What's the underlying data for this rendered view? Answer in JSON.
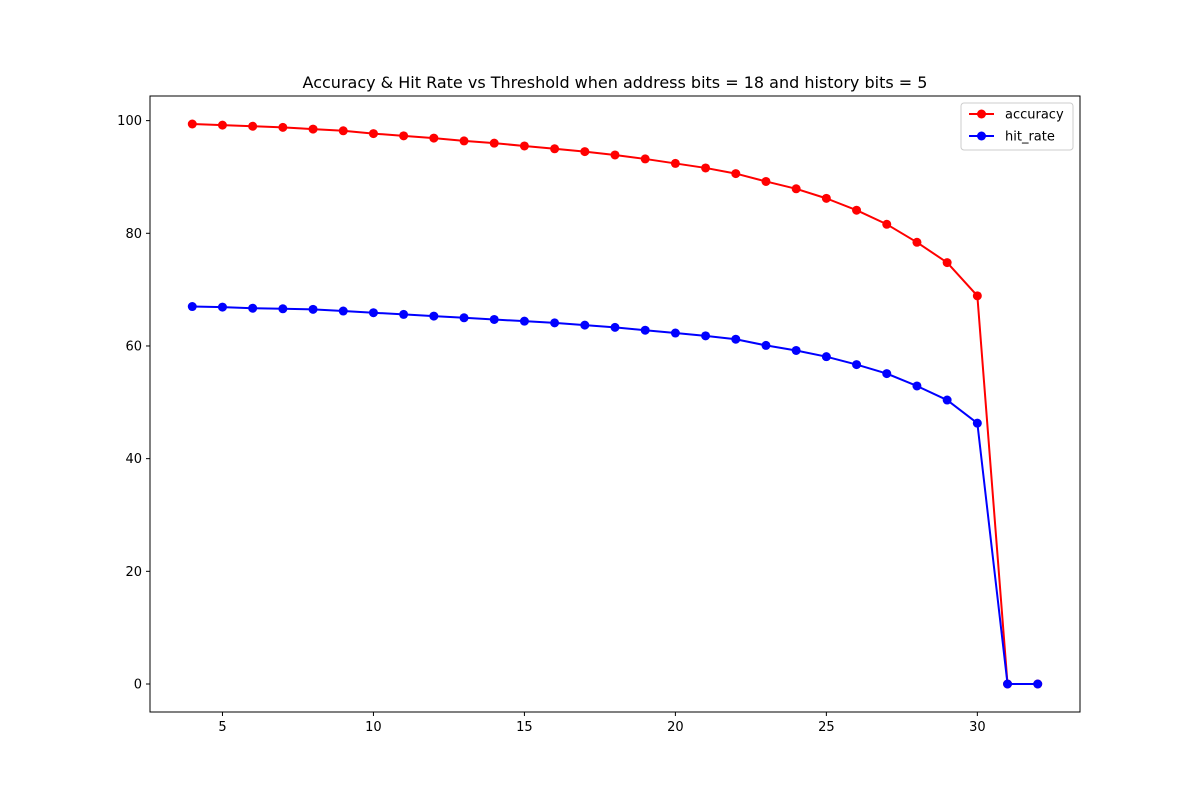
{
  "chart_data": {
    "type": "line",
    "title": "Accuracy & Hit Rate vs Threshold when address bits = 18 and history bits = 5",
    "xlabel": "",
    "ylabel": "",
    "xlim": [
      2.6,
      33.4
    ],
    "ylim": [
      -4.97,
      104.37
    ],
    "xticks": [
      5,
      10,
      15,
      20,
      25,
      30
    ],
    "yticks": [
      0,
      20,
      40,
      60,
      80,
      100
    ],
    "grid": false,
    "legend_position": "top-right",
    "x": [
      4,
      5,
      6,
      7,
      8,
      9,
      10,
      11,
      12,
      13,
      14,
      15,
      16,
      17,
      18,
      19,
      20,
      21,
      22,
      23,
      24,
      25,
      26,
      27,
      28,
      29,
      30,
      31,
      32
    ],
    "series": [
      {
        "name": "accuracy",
        "color": "#ff0000",
        "values": [
          99.4,
          99.2,
          99.0,
          98.8,
          98.5,
          98.2,
          97.7,
          97.3,
          96.9,
          96.4,
          96.0,
          95.5,
          95.0,
          94.5,
          93.9,
          93.2,
          92.4,
          91.6,
          90.6,
          89.2,
          87.9,
          86.2,
          84.1,
          81.6,
          78.4,
          74.8,
          68.9,
          0.0,
          0.0
        ]
      },
      {
        "name": "hit_rate",
        "color": "#0000ff",
        "values": [
          67.0,
          66.9,
          66.7,
          66.6,
          66.5,
          66.2,
          65.9,
          65.6,
          65.3,
          65.0,
          64.7,
          64.4,
          64.1,
          63.7,
          63.3,
          62.8,
          62.3,
          61.8,
          61.2,
          60.1,
          59.2,
          58.1,
          56.7,
          55.1,
          52.9,
          50.4,
          46.3,
          0.0,
          0.0
        ]
      }
    ]
  }
}
